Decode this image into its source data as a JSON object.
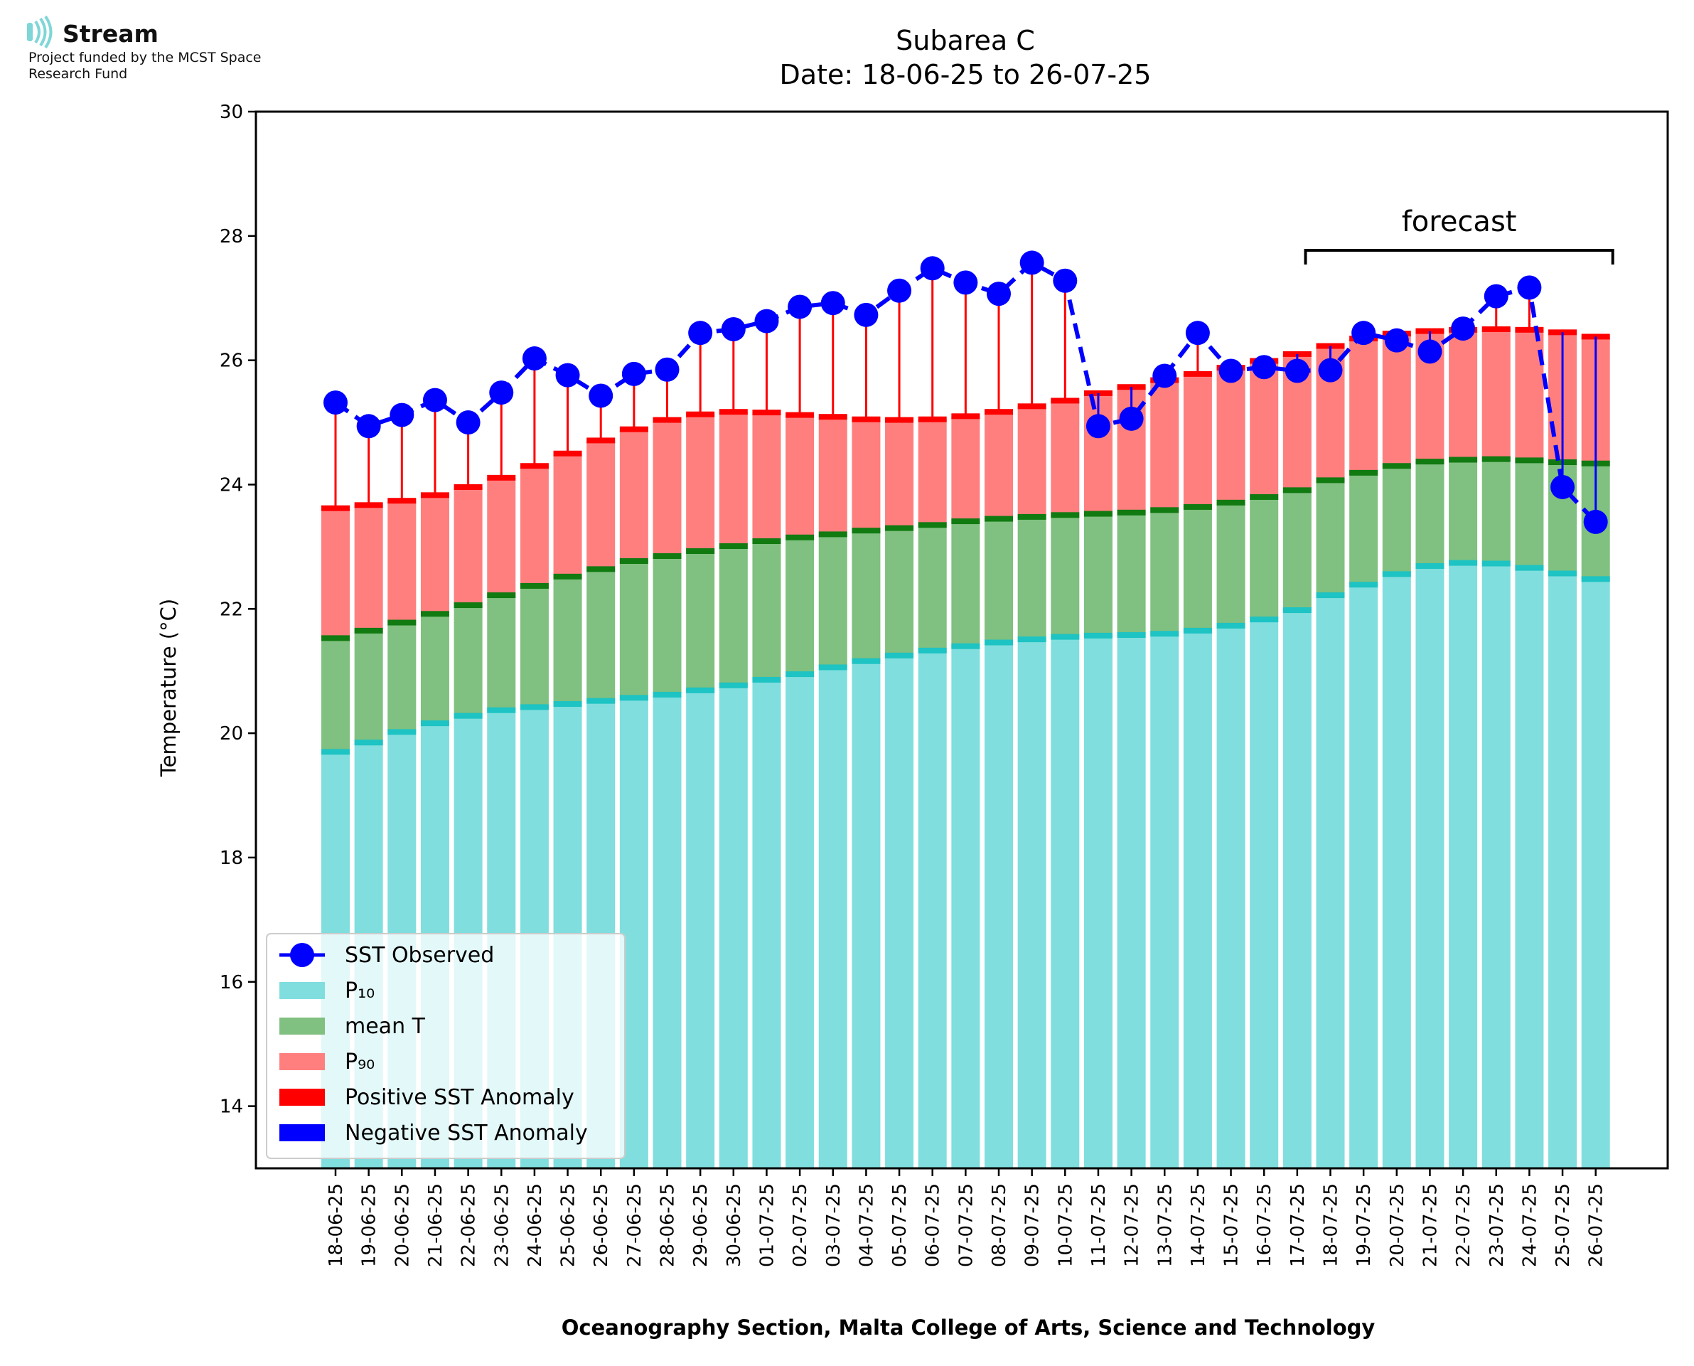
{
  "logo": {
    "name": "Stream",
    "funding": "Project funded by the MCST Space Research Fund"
  },
  "chart_data": {
    "type": "bar",
    "title": "Subarea C",
    "subtitle": "Date: 18-06-25 to 26-07-25",
    "xlabel": "Oceanography Section, Malta College of Arts, Science and Technology",
    "ylabel": "Temperature (°C)",
    "ylim": [
      13,
      30
    ],
    "yticks": [
      14,
      16,
      18,
      20,
      22,
      24,
      26,
      28,
      30
    ],
    "grid": false,
    "legend_position": "lower-left",
    "categories": [
      "18-06-25",
      "19-06-25",
      "20-06-25",
      "21-06-25",
      "22-06-25",
      "23-06-25",
      "24-06-25",
      "25-06-25",
      "26-06-25",
      "27-06-25",
      "28-06-25",
      "29-06-25",
      "30-06-25",
      "01-07-25",
      "02-07-25",
      "03-07-25",
      "04-07-25",
      "05-07-25",
      "06-07-25",
      "07-07-25",
      "08-07-25",
      "09-07-25",
      "10-07-25",
      "11-07-25",
      "12-07-25",
      "13-07-25",
      "14-07-25",
      "15-07-25",
      "16-07-25",
      "17-07-25",
      "18-07-25",
      "19-07-25",
      "20-07-25",
      "21-07-25",
      "22-07-25",
      "23-07-25",
      "24-07-25",
      "25-07-25",
      "26-07-25"
    ],
    "series": [
      {
        "name": "P10",
        "color": "#80DEDE",
        "edge_color": "#1EC3C3",
        "values": [
          19.7,
          19.85,
          20.02,
          20.16,
          20.28,
          20.37,
          20.42,
          20.47,
          20.52,
          20.57,
          20.62,
          20.69,
          20.77,
          20.86,
          20.95,
          21.06,
          21.16,
          21.25,
          21.33,
          21.4,
          21.46,
          21.51,
          21.55,
          21.57,
          21.58,
          21.6,
          21.65,
          21.73,
          21.83,
          21.98,
          22.22,
          22.39,
          22.56,
          22.69,
          22.74,
          22.73,
          22.66,
          22.57,
          22.48
        ]
      },
      {
        "name": "mean T",
        "color": "#80C080",
        "edge_color": "#117A11",
        "values": [
          21.53,
          21.65,
          21.78,
          21.92,
          22.06,
          22.22,
          22.37,
          22.52,
          22.64,
          22.77,
          22.85,
          22.93,
          23.01,
          23.09,
          23.15,
          23.2,
          23.26,
          23.3,
          23.35,
          23.41,
          23.45,
          23.48,
          23.51,
          23.53,
          23.55,
          23.59,
          23.64,
          23.71,
          23.8,
          23.91,
          24.07,
          24.19,
          24.3,
          24.37,
          24.4,
          24.41,
          24.39,
          24.36,
          24.34
        ]
      },
      {
        "name": "P90",
        "color": "#FF7F7F",
        "edge_color": "#FF0000",
        "values": [
          23.62,
          23.67,
          23.74,
          23.83,
          23.96,
          24.11,
          24.3,
          24.5,
          24.71,
          24.89,
          25.04,
          25.13,
          25.17,
          25.16,
          25.12,
          25.09,
          25.05,
          25.04,
          25.05,
          25.1,
          25.17,
          25.26,
          25.35,
          25.47,
          25.57,
          25.68,
          25.78,
          25.88,
          25.99,
          26.1,
          26.23,
          26.35,
          26.43,
          26.47,
          26.49,
          26.5,
          26.49,
          26.45,
          26.38
        ]
      },
      {
        "name": "SST Observed",
        "color": "#0000FF",
        "values": [
          25.32,
          24.94,
          25.12,
          25.36,
          25.0,
          25.48,
          26.03,
          25.76,
          25.43,
          25.78,
          25.85,
          26.44,
          26.5,
          26.63,
          26.86,
          26.92,
          26.73,
          27.12,
          27.48,
          27.25,
          27.07,
          27.57,
          27.28,
          24.94,
          25.06,
          25.75,
          26.44,
          25.83,
          25.89,
          25.83,
          25.84,
          26.44,
          26.32,
          26.14,
          26.51,
          27.03,
          27.17,
          23.96,
          23.4
        ]
      }
    ],
    "forecast": {
      "label": "forecast",
      "from": "18-07-25",
      "to": "26-07-25"
    },
    "legend": [
      "SST Observed",
      "P₁₀",
      "mean T",
      "P₉₀",
      "Positive SST Anomaly",
      "Negative SST Anomaly"
    ],
    "legend_colors": [
      "#0000FF",
      "#80DEDE",
      "#80C080",
      "#FF7F7F",
      "#FF0000",
      "#0000FF"
    ],
    "anomaly_colors": {
      "positive": "#FF0000",
      "negative": "#0000FF"
    }
  }
}
